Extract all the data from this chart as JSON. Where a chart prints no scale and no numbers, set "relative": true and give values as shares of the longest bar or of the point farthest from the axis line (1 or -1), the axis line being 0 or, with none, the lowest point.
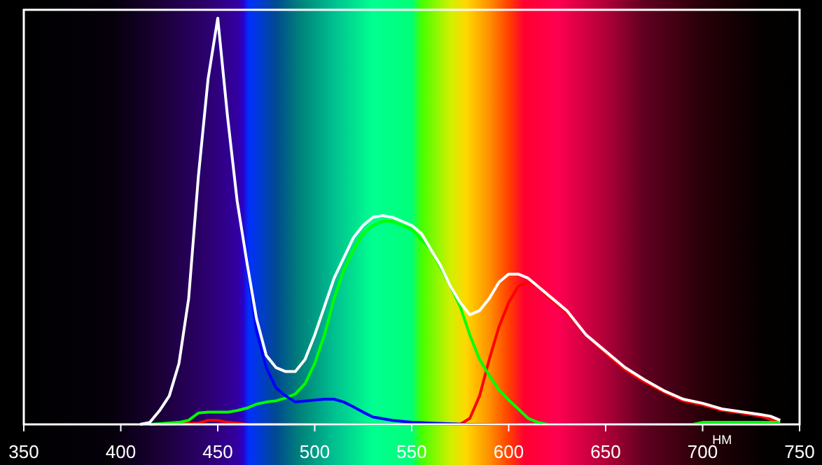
{
  "chart_data": {
    "type": "line",
    "xlabel": "НМ",
    "relative": true,
    "xlim": [
      350,
      750
    ],
    "xticks": [
      350,
      400,
      450,
      500,
      550,
      600,
      650,
      700,
      750
    ],
    "legend": false,
    "grid": false,
    "marker": "none",
    "line_style": "solid",
    "series": [
      {
        "color": "#ff0000",
        "x": [
          420,
          440,
          445,
          450,
          455,
          460,
          465,
          575,
          580,
          585,
          590,
          595,
          600,
          605,
          610,
          615,
          620,
          630,
          640,
          650,
          660,
          670,
          680,
          690,
          700,
          710,
          720,
          730,
          740
        ],
        "values": [
          0,
          0.003,
          0.01,
          0.01,
          0.005,
          0.003,
          0,
          0,
          0.015,
          0.07,
          0.16,
          0.24,
          0.3,
          0.34,
          0.35,
          0.34,
          0.315,
          0.275,
          0.22,
          0.175,
          0.135,
          0.105,
          0.08,
          0.058,
          0.048,
          0.035,
          0.028,
          0.02,
          0.005
        ]
      },
      {
        "color": "#00ff00",
        "x": [
          415,
          430,
          435,
          440,
          445,
          450,
          455,
          460,
          465,
          470,
          475,
          480,
          485,
          490,
          495,
          500,
          505,
          510,
          515,
          520,
          525,
          530,
          535,
          540,
          545,
          550,
          560,
          570,
          575,
          580,
          585,
          590,
          595,
          600,
          605,
          610,
          615,
          620,
          695,
          700,
          740
        ],
        "values": [
          0,
          0.005,
          0.01,
          0.028,
          0.03,
          0.03,
          0.03,
          0.034,
          0.04,
          0.05,
          0.055,
          0.058,
          0.065,
          0.075,
          0.1,
          0.15,
          0.22,
          0.31,
          0.38,
          0.43,
          0.47,
          0.49,
          0.5,
          0.5,
          0.49,
          0.48,
          0.43,
          0.34,
          0.29,
          0.22,
          0.16,
          0.12,
          0.085,
          0.06,
          0.038,
          0.015,
          0.005,
          0,
          0,
          0.005,
          0.005
        ]
      },
      {
        "color": "#0000ff",
        "x": [
          440,
          445,
          450,
          455,
          460,
          465,
          470,
          475,
          480,
          485,
          490,
          500,
          505,
          510,
          515,
          520,
          525,
          530,
          540,
          550,
          560,
          580,
          740
        ],
        "values": [
          0.61,
          0.85,
          1,
          0.76,
          0.55,
          0.4,
          0.23,
          0.14,
          0.09,
          0.07,
          0.055,
          0.06,
          0.062,
          0.062,
          0.055,
          0.043,
          0.03,
          0.018,
          0.01,
          0.005,
          0.003,
          0,
          0
        ]
      },
      {
        "color": "#ffffff",
        "x": [
          410,
          415,
          420,
          425,
          430,
          435,
          440,
          445,
          450,
          455,
          460,
          465,
          470,
          475,
          480,
          485,
          490,
          495,
          500,
          505,
          510,
          515,
          520,
          525,
          530,
          535,
          540,
          545,
          550,
          555,
          560,
          565,
          570,
          575,
          580,
          585,
          590,
          595,
          600,
          605,
          610,
          615,
          620,
          630,
          640,
          650,
          660,
          670,
          680,
          690,
          700,
          710,
          720,
          730,
          735,
          740
        ],
        "values": [
          0,
          0.005,
          0.034,
          0.07,
          0.15,
          0.31,
          0.61,
          0.85,
          1,
          0.76,
          0.55,
          0.4,
          0.26,
          0.17,
          0.14,
          0.13,
          0.13,
          0.16,
          0.22,
          0.29,
          0.36,
          0.41,
          0.46,
          0.49,
          0.51,
          0.514,
          0.51,
          0.5,
          0.49,
          0.47,
          0.43,
          0.39,
          0.34,
          0.3,
          0.27,
          0.28,
          0.31,
          0.35,
          0.37,
          0.37,
          0.36,
          0.34,
          0.32,
          0.28,
          0.22,
          0.18,
          0.14,
          0.11,
          0.083,
          0.062,
          0.052,
          0.038,
          0.031,
          0.024,
          0.02,
          0.01
        ]
      }
    ]
  }
}
